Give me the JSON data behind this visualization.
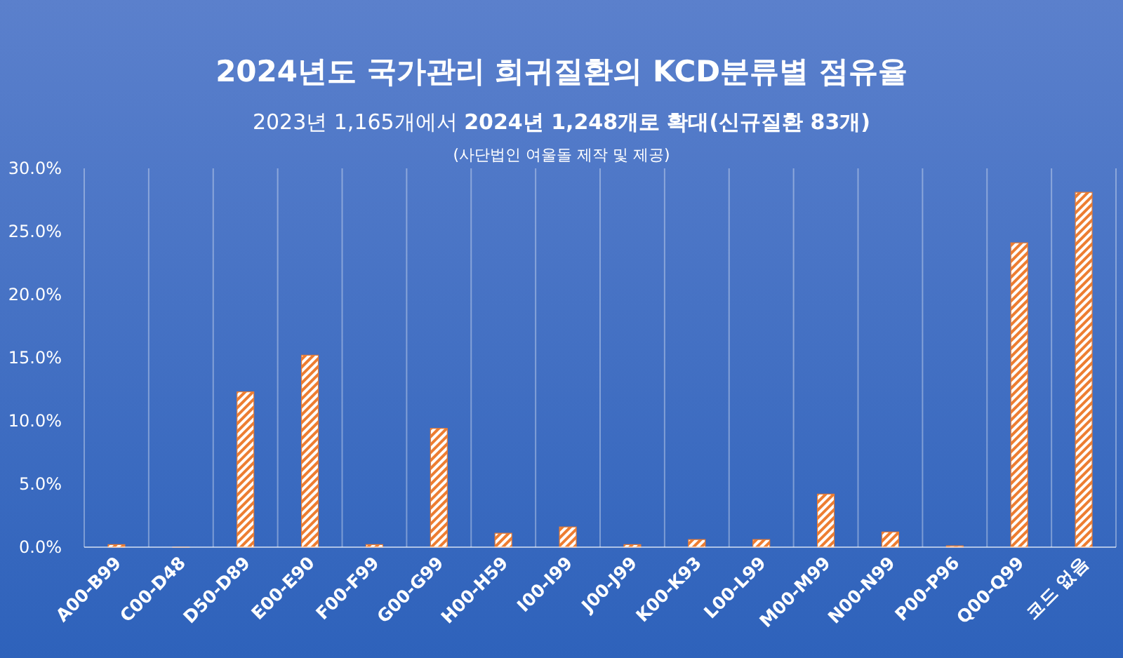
{
  "chart_data": {
    "type": "bar",
    "title": "2024년도 국가관리 희귀질환의 KCD분류별 점유율",
    "subtitle": "2023년 1,165개에서 **2024년 1,248개로 확대(신규질환 83개)**",
    "annotations": [
      "(사단법인 여울돌 제작 및 제공)"
    ],
    "categories": [
      "A00-B99",
      "C00-D48",
      "D50-D89",
      "E00-E90",
      "F00-F99",
      "G00-G99",
      "H00-H59",
      "I00-I99",
      "J00-J99",
      "K00-K93",
      "L00-L99",
      "M00-M99",
      "N00-N99",
      "P00-P96",
      "Q00-Q99",
      "코드 없음"
    ],
    "values": [
      0.2,
      0,
      12.3,
      15.2,
      0.2,
      9.4,
      1.1,
      1.6,
      0.2,
      0.6,
      0.6,
      4.2,
      1.2,
      0.1,
      24.1,
      28.1
    ],
    "color": "#ed7d31",
    "ylim": [
      0,
      30
    ],
    "yticks": [
      {
        "value": 0,
        "label": "0.0%"
      },
      {
        "value": 5,
        "label": "5.0%"
      },
      {
        "value": 10,
        "label": "10.0%"
      },
      {
        "value": 15,
        "label": "15.0%"
      },
      {
        "value": 20,
        "label": "20.0%"
      },
      {
        "value": 25,
        "label": "25.0%"
      },
      {
        "value": 30,
        "label": "30.0%"
      }
    ],
    "grid": "x"
  }
}
